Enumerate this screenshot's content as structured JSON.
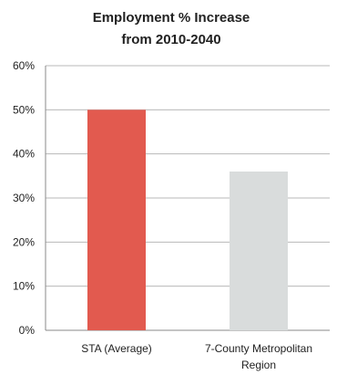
{
  "chart_data": {
    "type": "bar",
    "title_lines": [
      "Employment % Increase",
      "from 2010-2040"
    ],
    "categories": [
      {
        "lines": [
          "STA (Average)"
        ]
      },
      {
        "lines": [
          "7-County Metropolitan",
          "Region"
        ]
      }
    ],
    "values": [
      50,
      36
    ],
    "colors": [
      "#e25a4f",
      "#d9dcdc"
    ],
    "ylim": [
      0,
      60
    ],
    "yticks": [
      "0%",
      "10%",
      "20%",
      "30%",
      "40%",
      "50%",
      "60%"
    ],
    "grid": true,
    "legend": "none"
  }
}
